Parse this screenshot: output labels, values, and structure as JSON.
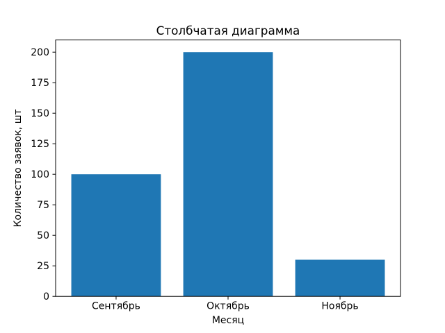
{
  "figure": {
    "background": "#ffffff"
  },
  "chart_data": {
    "type": "bar",
    "title": "Столбчатая диаграмма",
    "xlabel": "Месяц",
    "ylabel": "Количество заявок, шт",
    "categories": [
      "Сентябрь",
      "Октябрь",
      "Ноябрь"
    ],
    "values": [
      100,
      200,
      30
    ],
    "x": [
      0,
      1,
      2
    ],
    "bar_width": 0.8,
    "bar_color": "#1f77b4",
    "xlim": [
      -0.54,
      2.54
    ],
    "ylim": [
      0,
      210
    ],
    "yticks": [
      0,
      25,
      50,
      75,
      100,
      125,
      150,
      175,
      200
    ],
    "grid": false,
    "legend": "none",
    "frame_color": "#000000",
    "text_color": "#000000"
  }
}
